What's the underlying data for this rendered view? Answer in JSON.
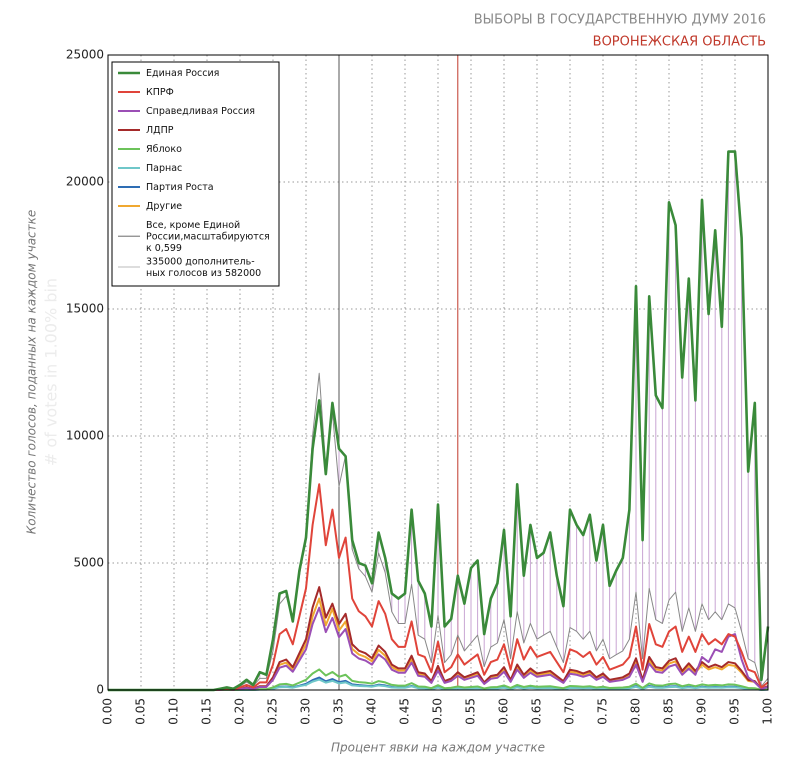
{
  "chart_data": {
    "type": "line",
    "title": "ВЫБОРЫ В ГОСУДАРСТВЕННУЮ ДУМУ 2016",
    "subtitle": "ВОРОНЕЖСКАЯ ОБЛАСТЬ",
    "xlabel": "Процент явки на каждом участке",
    "ylabel": "Количество голосов, поданных на каждом участке",
    "watermark": "# of votes in 1.00% bin",
    "grid": true,
    "legend": "upper left",
    "xlim": [
      0,
      1
    ],
    "ylim": [
      0,
      25000
    ],
    "yticks": [
      0,
      5000,
      10000,
      15000,
      20000,
      25000
    ],
    "xticks": [
      {
        "value": 0,
        "label": "0.00"
      },
      {
        "value": 0.05,
        "label": "0.05"
      },
      {
        "value": 0.1,
        "label": "0.10"
      },
      {
        "value": 0.15,
        "label": "0.15"
      },
      {
        "value": 0.2,
        "label": "0.20"
      },
      {
        "value": 0.25,
        "label": "0.25"
      },
      {
        "value": 0.3,
        "label": "0.30"
      },
      {
        "value": 0.35,
        "label": "0.35"
      },
      {
        "value": 0.4,
        "label": "0.40"
      },
      {
        "value": 0.45,
        "label": "0.45"
      },
      {
        "value": 0.5,
        "label": "0.50"
      },
      {
        "value": 0.55,
        "label": "0.55"
      },
      {
        "value": 0.6,
        "label": "0.60"
      },
      {
        "value": 0.65,
        "label": "0.65"
      },
      {
        "value": 0.7,
        "label": "0.70"
      },
      {
        "value": 0.75,
        "label": "0.75"
      },
      {
        "value": 0.8,
        "label": "0.80"
      },
      {
        "value": 0.85,
        "label": "0.85"
      },
      {
        "value": 0.9,
        "label": "0.90"
      },
      {
        "value": 0.95,
        "label": "0.95"
      },
      {
        "value": 1,
        "label": "1.00"
      }
    ],
    "vlines": [
      {
        "value": 0.35,
        "color": "#555555"
      },
      {
        "value": 0.53,
        "color": "#c0392b"
      }
    ],
    "x": [
      0,
      0.01,
      0.02,
      0.03,
      0.04,
      0.05,
      0.06,
      0.07,
      0.08,
      0.09,
      0.1,
      0.11,
      0.12,
      0.13,
      0.14,
      0.15,
      0.16,
      0.17,
      0.18,
      0.19,
      0.2,
      0.21,
      0.22,
      0.23,
      0.24,
      0.25,
      0.26,
      0.27,
      0.28,
      0.29,
      0.3,
      0.31,
      0.32,
      0.33,
      0.34,
      0.35,
      0.36,
      0.37,
      0.38,
      0.39,
      0.4,
      0.41,
      0.42,
      0.43,
      0.44,
      0.45,
      0.46,
      0.47,
      0.48,
      0.49,
      0.5,
      0.51,
      0.52,
      0.53,
      0.54,
      0.55,
      0.56,
      0.57,
      0.58,
      0.59,
      0.6,
      0.61,
      0.62,
      0.63,
      0.64,
      0.65,
      0.66,
      0.67,
      0.68,
      0.69,
      0.7,
      0.71,
      0.72,
      0.73,
      0.74,
      0.75,
      0.76,
      0.77,
      0.78,
      0.79,
      0.8,
      0.81,
      0.82,
      0.83,
      0.84,
      0.85,
      0.86,
      0.87,
      0.88,
      0.89,
      0.9,
      0.91,
      0.92,
      0.93,
      0.94,
      0.95,
      0.96,
      0.97,
      0.98,
      0.99,
      1
    ],
    "series": [
      {
        "name": "Единая Россия",
        "color": "#3a8a3a",
        "width": 2.6,
        "values": [
          0,
          0,
          0,
          0,
          0,
          0,
          0,
          0,
          0,
          0,
          0,
          0,
          0,
          0,
          0,
          0,
          0,
          50,
          100,
          50,
          200,
          400,
          200,
          700,
          600,
          2000,
          3800,
          3900,
          2700,
          4700,
          6000,
          9500,
          11400,
          8500,
          11300,
          9500,
          9200,
          5900,
          5000,
          4900,
          4200,
          6200,
          5200,
          3800,
          3600,
          3800,
          7100,
          4300,
          3800,
          2500,
          7300,
          2500,
          2800,
          4500,
          3400,
          4800,
          5100,
          2200,
          3600,
          4200,
          6300,
          2900,
          8100,
          4500,
          6500,
          5200,
          5400,
          6200,
          4500,
          3300,
          7100,
          6500,
          6100,
          6900,
          5100,
          6500,
          4100,
          4700,
          5200,
          7100,
          15900,
          5900,
          15500,
          11600,
          11100,
          19200,
          18300,
          12300,
          16200,
          11400,
          19300,
          14800,
          18100,
          14300,
          21200,
          21200,
          17800,
          8600,
          11300,
          400,
          2500
        ]
      },
      {
        "name": "КПРФ",
        "color": "#e0443a",
        "width": 2,
        "values": [
          0,
          0,
          0,
          0,
          0,
          0,
          0,
          0,
          0,
          0,
          0,
          0,
          0,
          0,
          0,
          0,
          0,
          20,
          50,
          20,
          100,
          200,
          100,
          300,
          300,
          1000,
          2200,
          2400,
          1800,
          2900,
          4000,
          6500,
          8100,
          5700,
          7100,
          5200,
          6000,
          3600,
          3100,
          2900,
          2500,
          3500,
          3000,
          2000,
          1700,
          1700,
          2700,
          1400,
          1300,
          700,
          1900,
          700,
          900,
          1400,
          1000,
          1200,
          1400,
          600,
          1100,
          1200,
          1800,
          800,
          2000,
          1200,
          1700,
          1300,
          1400,
          1500,
          1100,
          700,
          1600,
          1500,
          1300,
          1500,
          1000,
          1300,
          800,
          900,
          1000,
          1300,
          2500,
          800,
          2600,
          1800,
          1700,
          2300,
          2500,
          1500,
          2100,
          1500,
          2200,
          1800,
          2000,
          1800,
          2200,
          2100,
          1500,
          800,
          700,
          100,
          300
        ]
      },
      {
        "name": "Справедливая Россия",
        "color": "#9b4fb5",
        "width": 2,
        "values": [
          0,
          0,
          0,
          0,
          0,
          0,
          0,
          0,
          0,
          0,
          0,
          0,
          0,
          0,
          0,
          0,
          0,
          10,
          20,
          10,
          40,
          80,
          40,
          120,
          120,
          400,
          880,
          960,
          720,
          1160,
          1600,
          2600,
          3240,
          2280,
          2840,
          2080,
          2400,
          1440,
          1240,
          1160,
          1000,
          1400,
          1200,
          800,
          680,
          680,
          1080,
          560,
          520,
          280,
          760,
          280,
          360,
          560,
          400,
          480,
          560,
          240,
          440,
          480,
          720,
          320,
          800,
          480,
          680,
          520,
          560,
          600,
          440,
          280,
          640,
          600,
          520,
          600,
          400,
          520,
          320,
          360,
          400,
          520,
          1000,
          320,
          1040,
          720,
          680,
          920,
          1000,
          600,
          840,
          600,
          1300,
          1100,
          1600,
          1500,
          2100,
          2200,
          1200,
          500,
          300,
          40,
          120
        ]
      },
      {
        "name": "ЛДПР",
        "color": "#a52a2a",
        "width": 2,
        "values": [
          0,
          0,
          0,
          0,
          0,
          0,
          0,
          0,
          0,
          0,
          0,
          0,
          0,
          0,
          0,
          0,
          0,
          10,
          25,
          10,
          50,
          100,
          50,
          150,
          150,
          500,
          1100,
          1200,
          900,
          1450,
          2000,
          3250,
          4050,
          2850,
          3400,
          2600,
          3000,
          1800,
          1550,
          1450,
          1250,
          1750,
          1500,
          1000,
          850,
          850,
          1350,
          700,
          650,
          350,
          950,
          350,
          450,
          700,
          500,
          600,
          700,
          300,
          550,
          600,
          900,
          400,
          1000,
          600,
          850,
          650,
          700,
          750,
          550,
          350,
          800,
          750,
          650,
          750,
          500,
          650,
          400,
          450,
          500,
          650,
          1250,
          400,
          1300,
          900,
          850,
          1150,
          1250,
          750,
          1050,
          750,
          1100,
          900,
          1000,
          900,
          1100,
          1050,
          750,
          400,
          350,
          50,
          150
        ]
      },
      {
        "name": "Яблоко",
        "color": "#6cc35a",
        "width": 2,
        "values": [
          0,
          0,
          0,
          0,
          0,
          0,
          0,
          0,
          0,
          0,
          0,
          0,
          0,
          0,
          0,
          0,
          0,
          0,
          5,
          0,
          10,
          20,
          10,
          30,
          30,
          100,
          220,
          240,
          180,
          290,
          400,
          650,
          810,
          570,
          710,
          520,
          600,
          360,
          310,
          290,
          250,
          350,
          300,
          200,
          170,
          170,
          270,
          140,
          130,
          70,
          190,
          70,
          90,
          140,
          100,
          120,
          140,
          60,
          110,
          120,
          180,
          80,
          200,
          120,
          170,
          130,
          140,
          150,
          110,
          70,
          160,
          150,
          130,
          150,
          100,
          130,
          80,
          90,
          100,
          130,
          250,
          80,
          260,
          180,
          170,
          230,
          250,
          150,
          210,
          150,
          220,
          180,
          200,
          180,
          220,
          210,
          150,
          80,
          70,
          10,
          30
        ]
      },
      {
        "name": "Парнас",
        "color": "#6fc7c9",
        "width": 2,
        "values": [
          0,
          0,
          0,
          0,
          0,
          0,
          0,
          0,
          0,
          0,
          0,
          0,
          0,
          0,
          0,
          0,
          0,
          0,
          0,
          0,
          5,
          10,
          5,
          15,
          15,
          50,
          110,
          120,
          90,
          150,
          200,
          330,
          410,
          290,
          360,
          260,
          300,
          180,
          160,
          150,
          130,
          180,
          150,
          100,
          90,
          90,
          140,
          70,
          65,
          35,
          95,
          35,
          45,
          70,
          50,
          60,
          70,
          30,
          55,
          60,
          90,
          40,
          100,
          60,
          85,
          65,
          70,
          75,
          55,
          35,
          80,
          75,
          65,
          75,
          50,
          65,
          40,
          45,
          50,
          65,
          125,
          40,
          130,
          90,
          85,
          115,
          125,
          75,
          105,
          75,
          110,
          90,
          100,
          90,
          110,
          105,
          75,
          40,
          35,
          5,
          15
        ]
      },
      {
        "name": "Партия Роста",
        "color": "#2e6db4",
        "width": 2,
        "values": [
          0,
          0,
          0,
          0,
          0,
          0,
          0,
          0,
          0,
          0,
          0,
          0,
          0,
          0,
          0,
          0,
          0,
          0,
          0,
          0,
          5,
          10,
          5,
          20,
          20,
          60,
          130,
          140,
          110,
          170,
          240,
          390,
          490,
          340,
          430,
          310,
          360,
          220,
          190,
          170,
          150,
          210,
          180,
          120,
          100,
          100,
          160,
          80,
          80,
          40,
          110,
          40,
          50,
          80,
          60,
          70,
          80,
          40,
          70,
          70,
          110,
          50,
          120,
          70,
          100,
          80,
          80,
          90,
          70,
          40,
          100,
          90,
          80,
          90,
          60,
          80,
          50,
          50,
          60,
          80,
          150,
          50,
          160,
          110,
          100,
          140,
          150,
          90,
          130,
          90,
          130,
          110,
          120,
          110,
          130,
          130,
          90,
          50,
          40,
          5,
          20
        ]
      },
      {
        "name": "Другие",
        "color": "#f0a830",
        "width": 2,
        "values": [
          0,
          0,
          0,
          0,
          0,
          0,
          0,
          0,
          0,
          0,
          0,
          0,
          0,
          0,
          0,
          0,
          0,
          10,
          20,
          10,
          45,
          90,
          45,
          135,
          135,
          450,
          990,
          1080,
          810,
          1300,
          1800,
          2900,
          3600,
          2550,
          3200,
          2340,
          2700,
          1620,
          1400,
          1300,
          1130,
          1580,
          1350,
          900,
          770,
          770,
          1220,
          630,
          590,
          320,
          860,
          320,
          410,
          630,
          450,
          540,
          630,
          270,
          500,
          540,
          810,
          360,
          900,
          540,
          770,
          590,
          630,
          680,
          500,
          320,
          720,
          680,
          590,
          680,
          450,
          590,
          360,
          410,
          450,
          590,
          1130,
          360,
          1170,
          810,
          770,
          1040,
          1130,
          680,
          950,
          680,
          990,
          810,
          900,
          810,
          990,
          950,
          680,
          360,
          320,
          45,
          140
        ]
      },
      {
        "name": "Все, кроме Единой\nРоссии,масштабируются\nк 0,599",
        "color": "#888888",
        "width": 1,
        "values": [
          0,
          0,
          0,
          0,
          0,
          0,
          0,
          0,
          0,
          0,
          0,
          0,
          0,
          0,
          0,
          0,
          0,
          30,
          80,
          30,
          150,
          310,
          150,
          460,
          460,
          1540,
          3390,
          3700,
          2770,
          4470,
          6160,
          10010,
          12470,
          8780,
          10930,
          8010,
          9240,
          5540,
          4770,
          4470,
          3850,
          5390,
          4620,
          3080,
          2620,
          2620,
          4160,
          2160,
          2000,
          1080,
          2930,
          1080,
          1390,
          2160,
          1540,
          1850,
          2160,
          920,
          1690,
          1850,
          2770,
          1230,
          3080,
          1850,
          2620,
          2000,
          2160,
          2310,
          1690,
          1080,
          2460,
          2310,
          2000,
          2310,
          1540,
          2000,
          1230,
          1390,
          1540,
          2000,
          3850,
          1230,
          4000,
          2770,
          2620,
          3540,
          3850,
          2310,
          3230,
          2310,
          3390,
          2770,
          3080,
          2770,
          3390,
          3230,
          2310,
          1230,
          1080,
          150,
          460
        ]
      }
    ],
    "hatch": {
      "name": "335000 дополнитель-\nных голосов из 582000",
      "color": "#c9a6d3"
    }
  }
}
